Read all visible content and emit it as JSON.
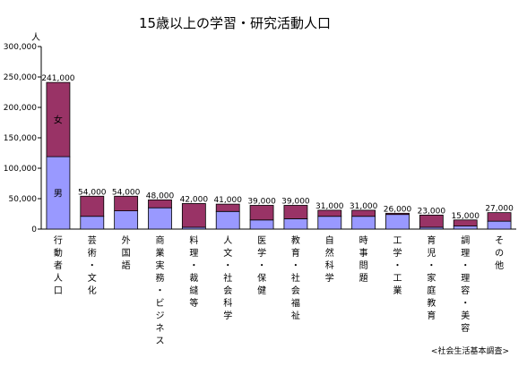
{
  "chart_data": {
    "type": "bar",
    "stacked": true,
    "title": "15歳以上の学習・研究活動人口",
    "y_unit": "人",
    "ylim": [
      0,
      300000
    ],
    "y_ticks": [
      "0",
      "50,000",
      "100,000",
      "150,000",
      "200,000",
      "250,000",
      "300,000"
    ],
    "categories": [
      "行動者人口",
      "芸術・文化",
      "外国語",
      "商業実務・ビジネス",
      "料理・裁縫等",
      "人文・社会科学",
      "医学・保健",
      "教育・社会福祉",
      "自然科学",
      "時事問題",
      "工学・工業",
      "育児・家庭教育",
      "調理・理容・美容",
      "その他"
    ],
    "totals": [
      241000,
      54000,
      54000,
      48000,
      42000,
      41000,
      39000,
      39000,
      31000,
      31000,
      26000,
      23000,
      15000,
      27000
    ],
    "total_labels": [
      "241,000",
      "54,000",
      "54,000",
      "48,000",
      "42,000",
      "41,000",
      "39,000",
      "39,000",
      "31,000",
      "31,000",
      "26,000",
      "23,000",
      "15,000",
      "27,000"
    ],
    "series": [
      {
        "name": "男",
        "color": "#9999ff",
        "values": [
          119000,
          21000,
          30000,
          35000,
          3000,
          29000,
          15000,
          17000,
          21000,
          21000,
          24000,
          3000,
          5000,
          13000
        ]
      },
      {
        "name": "女",
        "color": "#993366",
        "values": [
          122000,
          33000,
          24000,
          13000,
          39000,
          12000,
          24000,
          22000,
          10000,
          10000,
          2000,
          20000,
          10000,
          14000
        ]
      }
    ],
    "grid": false,
    "legend": "none",
    "source": "<社会生活基本調査>"
  }
}
